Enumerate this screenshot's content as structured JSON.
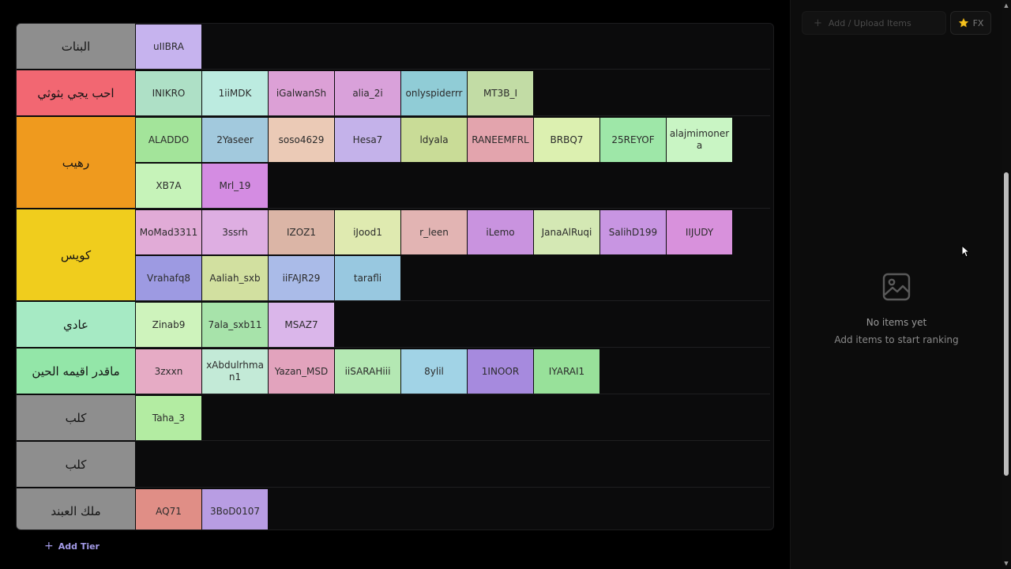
{
  "tiers": [
    {
      "label": "البنات",
      "color": "#8e8e8e",
      "rows": 1,
      "items": [
        {
          "name": "uIIBRA",
          "color": "#c6b3ee"
        }
      ]
    },
    {
      "label": "احب يجي بثوثي",
      "color": "#f26772",
      "rows": 1,
      "items": [
        {
          "name": "INIKRO",
          "color": "#aee0c6"
        },
        {
          "name": "1iiMDK",
          "color": "#bcebe0"
        },
        {
          "name": "iGalwanSh",
          "color": "#dca0d6"
        },
        {
          "name": "alia_2i",
          "color": "#d9a1da"
        },
        {
          "name": "onlyspiderrr",
          "color": "#90ccd6"
        },
        {
          "name": "MT3B_I",
          "color": "#c2dca5"
        }
      ]
    },
    {
      "label": "رهيب",
      "color": "#ef9a1e",
      "rows": 2,
      "items": [
        {
          "name": "ALADDO",
          "color": "#a3e49a"
        },
        {
          "name": "2Yaseer",
          "color": "#a2c9dd"
        },
        {
          "name": "soso4629",
          "color": "#ebcab6"
        },
        {
          "name": "Hesa7",
          "color": "#c4b2ea"
        },
        {
          "name": "ldyala",
          "color": "#c9dc97"
        },
        {
          "name": "RANEEMFRL",
          "color": "#e3a4ad"
        },
        {
          "name": "BRBQ7",
          "color": "#dcf0b0"
        },
        {
          "name": "25REYOF",
          "color": "#9ee7a8"
        },
        {
          "name": "alajmimonera",
          "color": "#c9f5c4"
        },
        {
          "name": "XB7A",
          "color": "#c6f3b9"
        },
        {
          "name": "Mrl_19",
          "color": "#d48ce2"
        }
      ]
    },
    {
      "label": "كويس",
      "color": "#f0cd1d",
      "rows": 2,
      "items": [
        {
          "name": "MoMad3311",
          "color": "#e1abd7"
        },
        {
          "name": "3ssrh",
          "color": "#deaee2"
        },
        {
          "name": "IZOZ1",
          "color": "#dbb5a6"
        },
        {
          "name": "iJood1",
          "color": "#dfeab0"
        },
        {
          "name": "r_leen",
          "color": "#e2b4b3"
        },
        {
          "name": "iLemo",
          "color": "#c993df"
        },
        {
          "name": "JanaAlRuqi",
          "color": "#d4e8b4"
        },
        {
          "name": "SalihD199",
          "color": "#c895e2"
        },
        {
          "name": "IIJUDY",
          "color": "#d891dc"
        },
        {
          "name": "Vrahafq8",
          "color": "#9d9ae2"
        },
        {
          "name": "Aaliah_sxb",
          "color": "#d2e0a0"
        },
        {
          "name": "iiFAJR29",
          "color": "#aabbe8"
        },
        {
          "name": "tarafli",
          "color": "#98c8e0"
        }
      ]
    },
    {
      "label": "عادي",
      "color": "#a6eac4",
      "rows": 1,
      "items": [
        {
          "name": "Zinab9",
          "color": "#cef3bc"
        },
        {
          "name": "7ala_sxb11",
          "color": "#a7e3aa"
        },
        {
          "name": "MSAZ7",
          "color": "#dab6ea"
        }
      ]
    },
    {
      "label": "ماقدر اقيمه الحين",
      "color": "#93e6a8",
      "rows": 1,
      "items": [
        {
          "name": "3zxxn",
          "color": "#e6abc5"
        },
        {
          "name": "xAbdulrhman1",
          "color": "#c3ead7"
        },
        {
          "name": "Yazan_MSD",
          "color": "#e2a3bd"
        },
        {
          "name": "iiSARAHiii",
          "color": "#b4e8b3"
        },
        {
          "name": "8ylil",
          "color": "#a1d3e6"
        },
        {
          "name": "1INOOR",
          "color": "#a68ade"
        },
        {
          "name": "IYARAI1",
          "color": "#98e19a"
        }
      ]
    },
    {
      "label": "كلب",
      "color": "#8e8e8e",
      "rows": 1,
      "items": [
        {
          "name": "Taha_3",
          "color": "#b3eca2"
        }
      ]
    },
    {
      "label": "كلب",
      "color": "#8e8e8e",
      "rows": 1,
      "items": []
    },
    {
      "label": "ملك العبند",
      "color": "#8e8e8e",
      "rows": 1,
      "items": [
        {
          "name": "AQ71",
          "color": "#e08e86"
        },
        {
          "name": "3BoD0107",
          "color": "#b89de3"
        }
      ]
    }
  ],
  "add_tier_label": "Add Tier",
  "panel": {
    "upload_label": "Add / Upload Items",
    "fx_label": "FX",
    "empty_title": "No items yet",
    "empty_subtitle": "Add items to start ranking"
  },
  "icons": {
    "add_tier": "plus-icon",
    "upload": "plus-icon",
    "fx": "star-icon",
    "empty": "image-icon"
  }
}
